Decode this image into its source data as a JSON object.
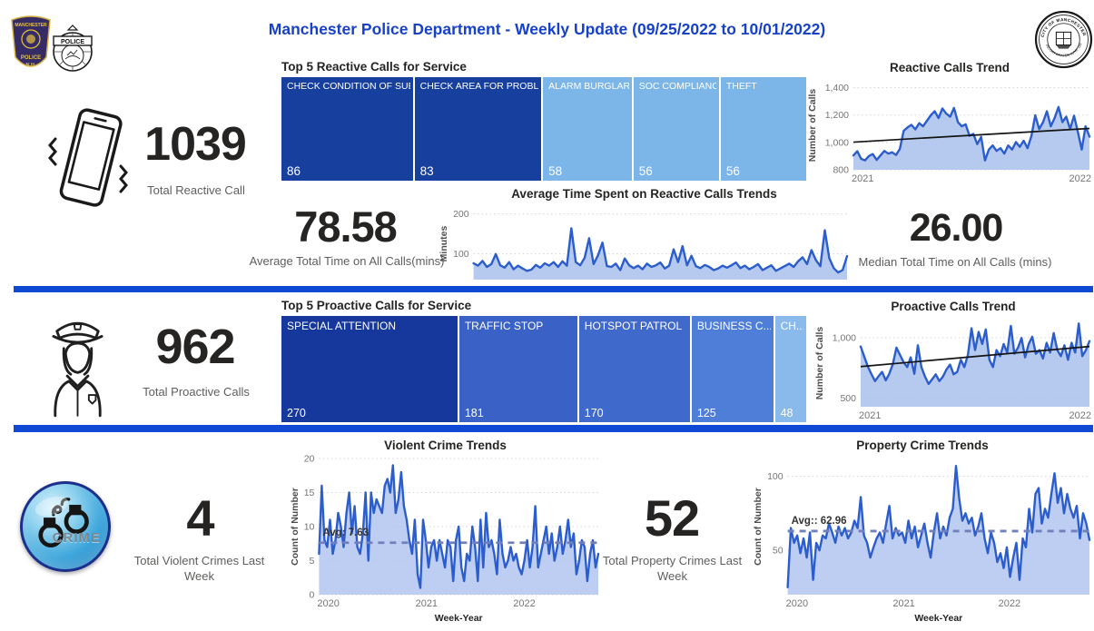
{
  "header": {
    "title": "Manchester Police Department - Weekly Update (09/25/2022 to 10/01/2022)",
    "title_color": "#1741c7",
    "logos": {
      "patch": {
        "line1": "MANCHESTER",
        "line2": "POLICE",
        "line3": "N.H."
      },
      "badge": {
        "banner": "POLICE"
      },
      "seal": {
        "top": "CITY OF MANCHESTER",
        "bottom": "INCORPORATED JUNE 1846"
      }
    }
  },
  "reactive": {
    "kpi_total": {
      "value": "1039",
      "label": "Total Reactive Call"
    },
    "treemap": {
      "title": "Top 5 Reactive Calls for Service",
      "items": [
        {
          "label": "CHECK CONDITION OF SUBJE...",
          "value": "86",
          "color": "#17409e"
        },
        {
          "label": "CHECK AREA FOR PROBLEM",
          "value": "83",
          "color": "#17409e"
        },
        {
          "label": "ALARM BURGLARY",
          "value": "58",
          "color": "#7cb5e8"
        },
        {
          "label": "SOC COMPLIANCE",
          "value": "56",
          "color": "#7cb5e8"
        },
        {
          "label": "THEFT",
          "value": "56",
          "color": "#7cb5e8"
        }
      ]
    },
    "kpi_avg": {
      "value": "78.58",
      "label": "Average Total Time on All Calls(mins)"
    },
    "kpi_median": {
      "value": "26.00",
      "label": "Median Total Time on All Calls (mins)"
    }
  },
  "proactive": {
    "kpi_total": {
      "value": "962",
      "label": "Total Proactive Calls"
    },
    "treemap": {
      "title": "Top 5 Proactive Calls for Service",
      "items": [
        {
          "label": "SPECIAL ATTENTION",
          "value": "270",
          "color": "#16389c"
        },
        {
          "label": "TRAFFIC STOP",
          "value": "181",
          "color": "#3a62c6"
        },
        {
          "label": "HOTSPOT PATROL",
          "value": "170",
          "color": "#4069cc"
        },
        {
          "label": "BUSINESS C...",
          "value": "125",
          "color": "#4f7ed8"
        },
        {
          "label": "CH...",
          "value": "48",
          "color": "#8abaec"
        }
      ]
    }
  },
  "crime": {
    "kpi_violent": {
      "value": "4",
      "label": "Total Violent Crimes Last Week"
    },
    "kpi_property": {
      "value": "52",
      "label": "Total Property Crimes Last Week"
    },
    "icon_text": "CRIME"
  },
  "chart_data": [
    {
      "type": "line",
      "name": "reactive-calls-trend",
      "title": "Reactive Calls Trend",
      "ylabel": "Number of Calls",
      "xlabel": "",
      "ylim": [
        800,
        1450
      ],
      "yticks": [
        {
          "v": 800,
          "label": "800"
        },
        {
          "v": 1000,
          "label": "1,000"
        },
        {
          "v": 1200,
          "label": "1,200"
        },
        {
          "v": 1400,
          "label": "1,400"
        }
      ],
      "xticks": [
        {
          "label": "2021",
          "pos": 0
        },
        {
          "label": "2022",
          "pos": 1
        }
      ],
      "grid": "dotted",
      "legend": "none",
      "line_color": "#2b5dcc",
      "fill_color": "#a9c0ec",
      "trend": [
        1002,
        1102
      ],
      "values": [
        905,
        935,
        880,
        868,
        900,
        915,
        872,
        905,
        938,
        918,
        928,
        908,
        952,
        1085,
        1110,
        1128,
        1095,
        1140,
        1118,
        1158,
        1198,
        1228,
        1178,
        1248,
        1210,
        1188,
        1252,
        1148,
        1118,
        1132,
        1048,
        1062,
        988,
        1040,
        868,
        948,
        978,
        938,
        958,
        918,
        978,
        948,
        1002,
        968,
        1012,
        958,
        1048,
        1198,
        1098,
        1148,
        1228,
        1118,
        1178,
        1258,
        1148,
        1188,
        1098,
        1195,
        1078,
        948,
        1118,
        1042
      ]
    },
    {
      "type": "area",
      "name": "avg-time-on-reactive-calls",
      "title": "Average Time Spent on Reactive Calls Trends",
      "ylabel": "Minutes",
      "xlabel": "",
      "ylim": [
        35,
        215
      ],
      "yticks": [
        {
          "v": 100,
          "label": "100"
        },
        {
          "v": 200,
          "label": "200"
        }
      ],
      "xticks": [],
      "grid": "dotted",
      "legend": "none",
      "line_color": "#2b5dcc",
      "fill_color": "#a9c0ec",
      "values": [
        76,
        70,
        82,
        67,
        74,
        99,
        71,
        65,
        79,
        61,
        70,
        63,
        57,
        60,
        72,
        65,
        76,
        70,
        79,
        67,
        81,
        70,
        164,
        79,
        71,
        90,
        139,
        74,
        96,
        128,
        69,
        67,
        75,
        59,
        88,
        71,
        64,
        70,
        61,
        75,
        67,
        71,
        78,
        63,
        70,
        111,
        79,
        119,
        71,
        95,
        69,
        64,
        72,
        67,
        59,
        63,
        70,
        65,
        71,
        78,
        64,
        70,
        61,
        67,
        74,
        59,
        65,
        71,
        57,
        63,
        69,
        75,
        67,
        81,
        91,
        74,
        109,
        84,
        69,
        159,
        89,
        64,
        53,
        59,
        94
      ]
    },
    {
      "type": "line",
      "name": "proactive-calls-trend",
      "title": "Proactive Calls Trend",
      "ylabel": "Number of Calls",
      "xlabel": "",
      "ylim": [
        430,
        1150
      ],
      "yticks": [
        {
          "v": 500,
          "label": "500"
        },
        {
          "v": 1000,
          "label": "1,000"
        }
      ],
      "xticks": [
        {
          "label": "2021",
          "pos": 0
        },
        {
          "label": "2022",
          "pos": 1
        }
      ],
      "grid": "dotted",
      "legend": "none",
      "line_color": "#2b5dcc",
      "fill_color": "#a9c0ec",
      "trend": [
        762,
        928
      ],
      "values": [
        928,
        845,
        762,
        700,
        642,
        682,
        718,
        648,
        702,
        782,
        918,
        858,
        798,
        758,
        838,
        702,
        938,
        758,
        678,
        618,
        658,
        698,
        642,
        678,
        738,
        778,
        698,
        718,
        818,
        758,
        858,
        1078,
        898,
        1048,
        948,
        1068,
        818,
        758,
        898,
        848,
        948,
        878,
        1098,
        868,
        918,
        998,
        838,
        948,
        1008,
        868,
        898,
        828,
        958,
        878,
        1038,
        898,
        848,
        938,
        818,
        958,
        878,
        1118,
        848,
        898,
        972
      ]
    },
    {
      "type": "line",
      "name": "violent-crime-trends",
      "title": "Violent Crime Trends",
      "ylabel": "Count of Number",
      "xlabel": "Week-Year",
      "ylim": [
        0,
        20
      ],
      "yticks": [
        {
          "v": 0,
          "label": "0"
        },
        {
          "v": 5,
          "label": "5"
        },
        {
          "v": 10,
          "label": "10"
        },
        {
          "v": 15,
          "label": "15"
        },
        {
          "v": 20,
          "label": "20"
        }
      ],
      "xticks": [
        {
          "label": "2020",
          "pos": 0
        },
        {
          "label": "2021",
          "pos": 0.385
        },
        {
          "label": "2022",
          "pos": 0.735
        }
      ],
      "grid": "dotted",
      "legend": "none",
      "line_color": "#2b5dcc",
      "fill_color": "#b3c6f0",
      "avg": {
        "v": 7.63,
        "label": "Avg: 7.63"
      },
      "values": [
        6,
        16,
        8,
        7,
        11,
        6,
        8,
        12,
        10,
        7,
        12,
        15,
        9,
        13,
        7,
        6,
        9,
        15,
        5,
        15,
        12,
        14,
        13,
        12,
        16,
        17,
        15,
        19,
        12,
        14,
        18,
        13,
        11,
        8,
        6,
        11,
        3,
        1,
        11,
        8,
        4,
        7,
        8,
        5,
        8,
        6,
        4,
        8,
        7,
        2,
        8,
        10,
        4,
        2,
        6,
        5,
        10,
        7,
        2,
        11,
        4,
        12,
        7,
        8,
        6,
        3,
        11,
        6,
        4,
        5,
        7,
        5,
        6,
        4,
        3,
        5,
        8,
        4,
        7,
        13,
        4,
        6,
        8,
        10,
        6,
        9,
        5,
        7,
        10,
        6,
        8,
        11,
        7,
        9,
        3,
        5,
        8,
        7,
        2,
        6,
        8,
        4,
        6
      ]
    },
    {
      "type": "line",
      "name": "property-crime-trends",
      "title": "Property Crime Trends",
      "ylabel": "Count of Number",
      "xlabel": "Week-Year",
      "ylim": [
        20,
        112
      ],
      "yticks": [
        {
          "v": 50,
          "label": "50"
        },
        {
          "v": 100,
          "label": "100"
        }
      ],
      "xticks": [
        {
          "label": "2020",
          "pos": 0
        },
        {
          "label": "2021",
          "pos": 0.385
        },
        {
          "label": "2022",
          "pos": 0.735
        }
      ],
      "grid": "dotted",
      "legend": "none",
      "line_color": "#2b5dcc",
      "fill_color": "#b3c6f0",
      "avg": {
        "v": 62.96,
        "label": "Avg:: 62.96"
      },
      "values": [
        25,
        65,
        55,
        60,
        48,
        58,
        45,
        62,
        30,
        55,
        50,
        60,
        58,
        68,
        62,
        55,
        66,
        60,
        65,
        58,
        62,
        70,
        65,
        86,
        60,
        55,
        45,
        52,
        58,
        62,
        55,
        68,
        80,
        58,
        65,
        60,
        62,
        55,
        70,
        58,
        66,
        52,
        60,
        68,
        55,
        45,
        62,
        75,
        58,
        66,
        60,
        72,
        78,
        107,
        85,
        70,
        75,
        68,
        72,
        60,
        66,
        75,
        58,
        48,
        62,
        55,
        42,
        48,
        38,
        52,
        32,
        45,
        55,
        30,
        58,
        52,
        78,
        62,
        88,
        92,
        68,
        78,
        72,
        88,
        102,
        82,
        92,
        75,
        88,
        78,
        72,
        80,
        58,
        75,
        68,
        57
      ]
    }
  ]
}
